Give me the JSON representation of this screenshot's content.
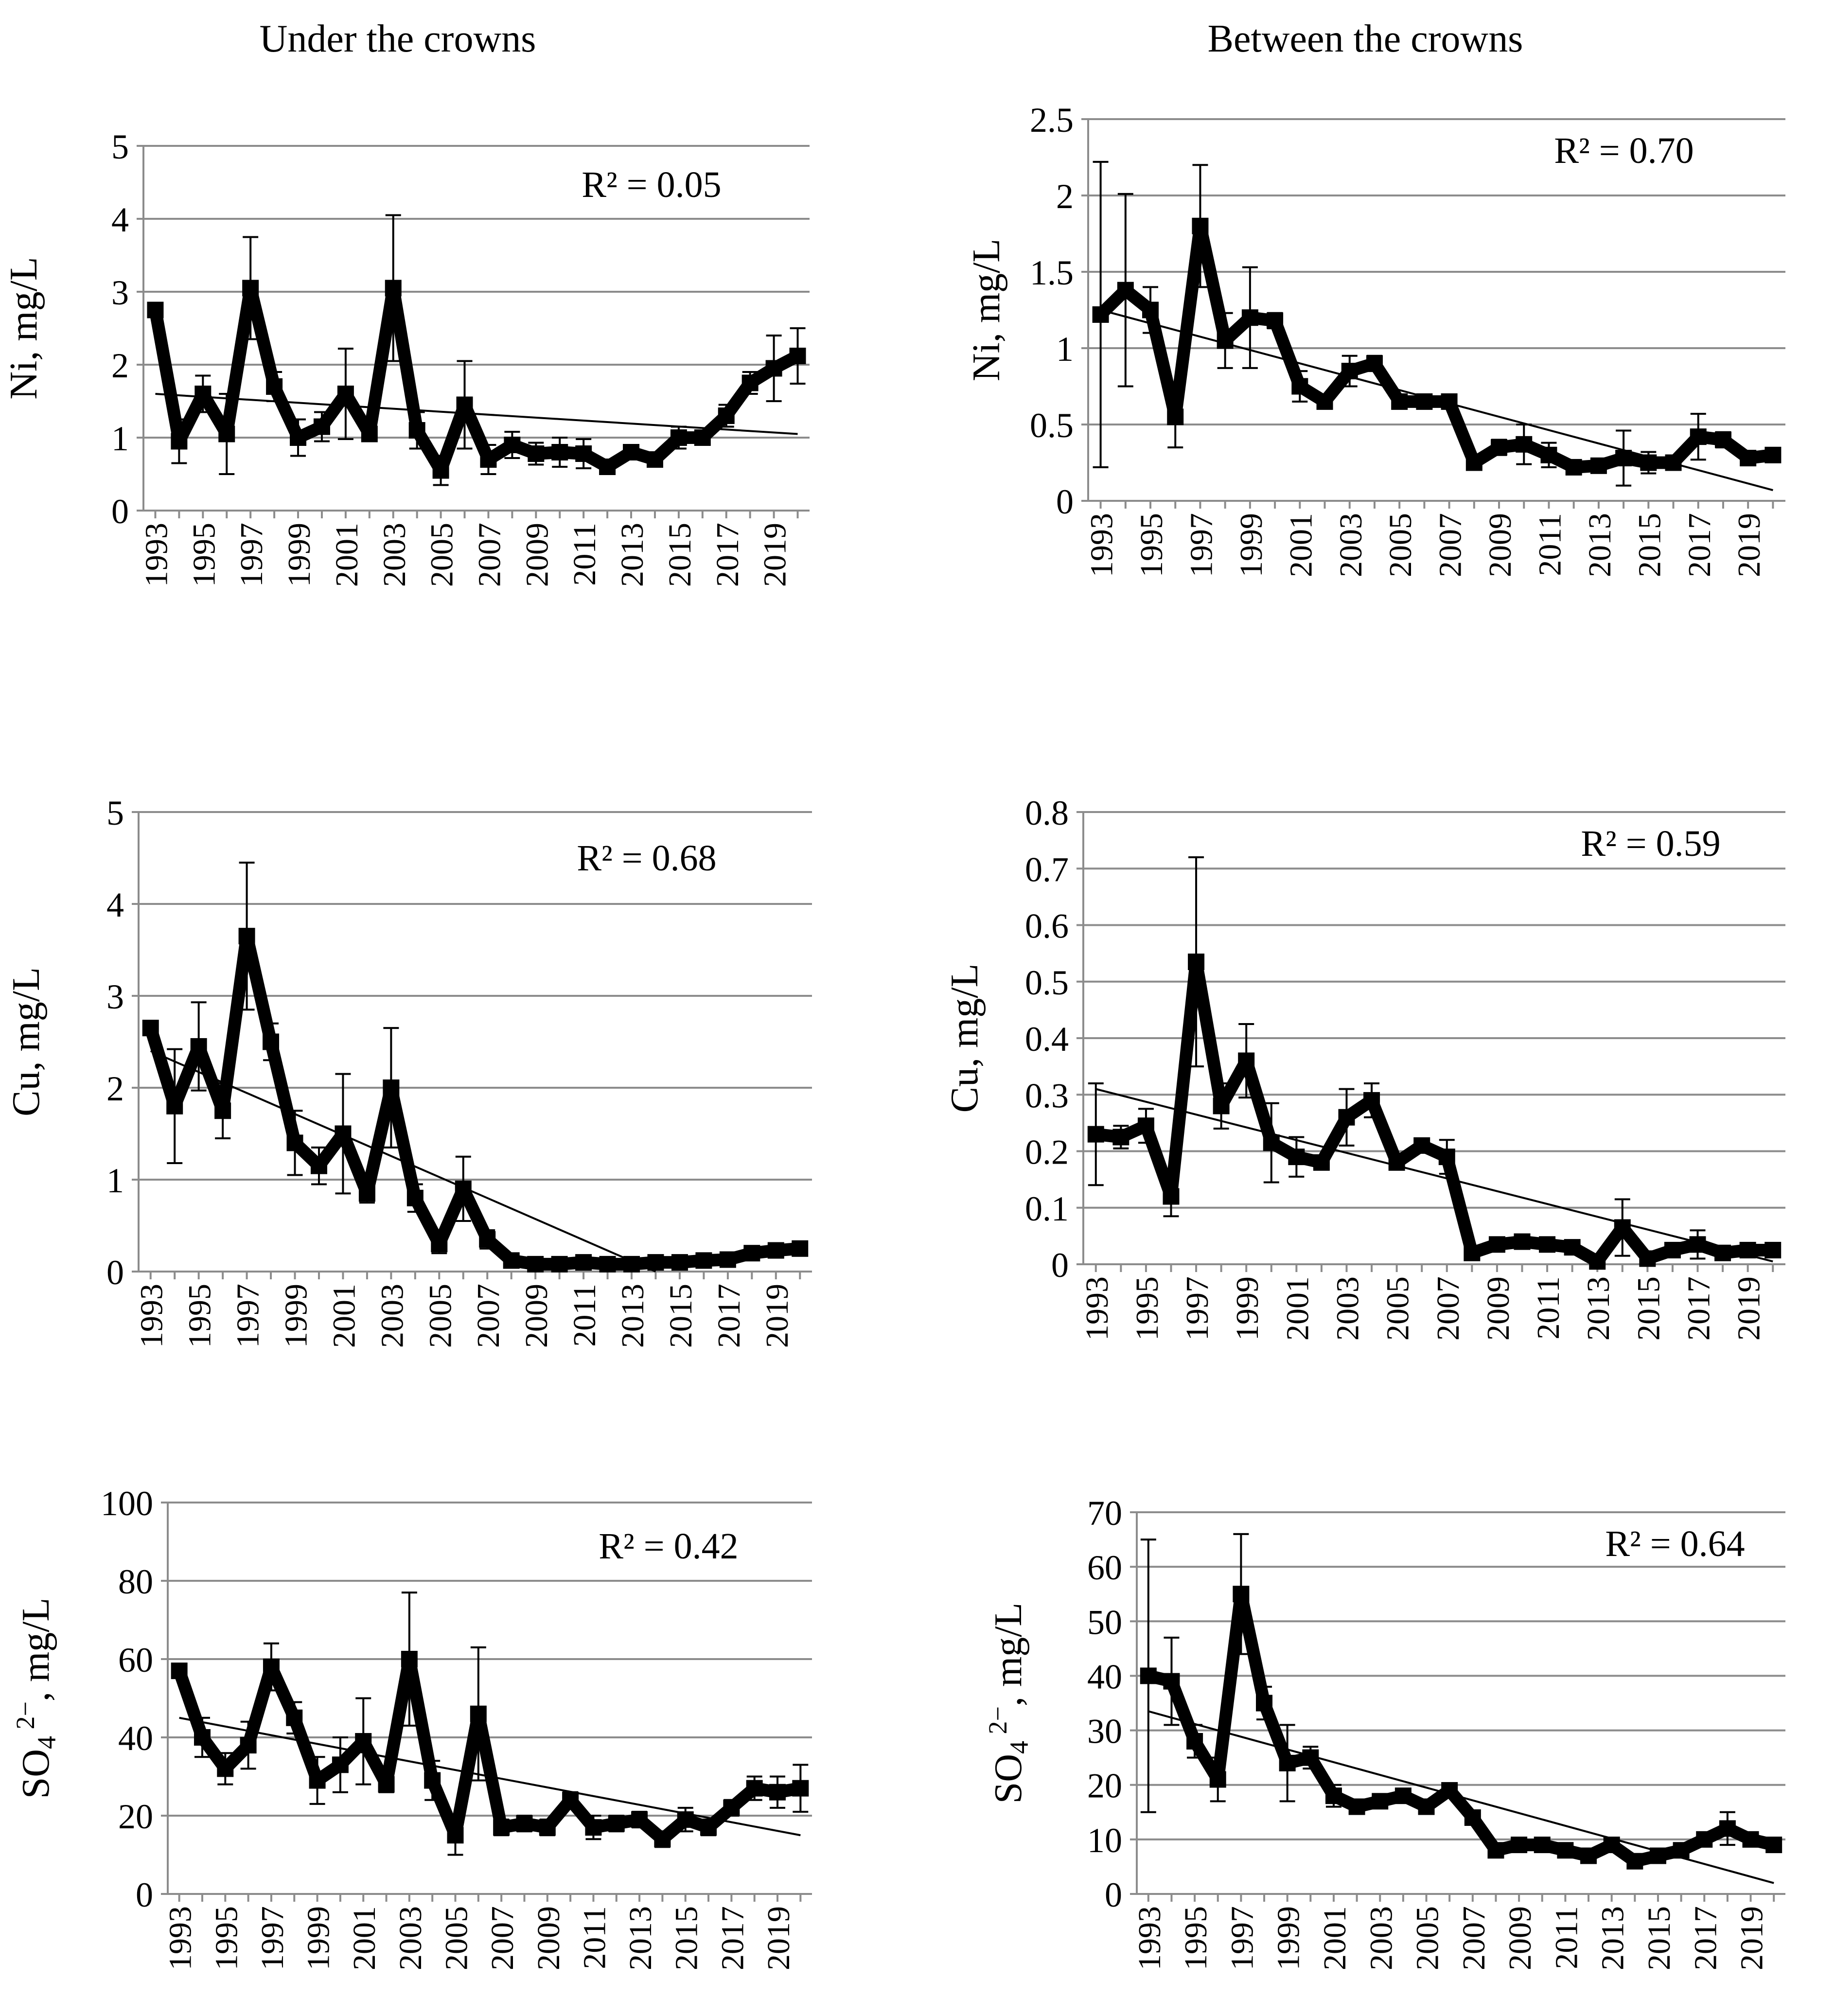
{
  "columns": [
    "Under the crowns",
    "Between the crowns"
  ],
  "chart_data": [
    {
      "id": "ni-under",
      "type": "line",
      "column": 0,
      "ylabel": "Ni, mg/L",
      "ylim": [
        0,
        5
      ],
      "yticks": [
        0,
        1,
        2,
        3,
        4,
        5
      ],
      "ytick_labels": [
        "0",
        "1",
        "2",
        "3",
        "4",
        "5"
      ],
      "x": [
        1993,
        1994,
        1995,
        1996,
        1997,
        1998,
        1999,
        2000,
        2001,
        2002,
        2003,
        2004,
        2005,
        2006,
        2007,
        2008,
        2009,
        2010,
        2011,
        2012,
        2013,
        2014,
        2015,
        2016,
        2017,
        2018,
        2019,
        2020
      ],
      "xtick_labels": [
        "1993",
        "1995",
        "1997",
        "1999",
        "2001",
        "2003",
        "2005",
        "2007",
        "2009",
        "2011",
        "2013",
        "2015",
        "2017",
        "2019"
      ],
      "values": [
        2.75,
        0.95,
        1.6,
        1.05,
        3.05,
        1.7,
        1.0,
        1.15,
        1.6,
        1.05,
        3.05,
        1.1,
        0.55,
        1.45,
        0.7,
        0.9,
        0.78,
        0.8,
        0.78,
        0.6,
        0.8,
        0.7,
        1.0,
        1.0,
        1.3,
        1.75,
        1.95,
        2.12
      ],
      "errors": [
        0,
        0.3,
        0.25,
        0.55,
        0.7,
        0.2,
        0.25,
        0.2,
        0.62,
        0.1,
        1.0,
        0.25,
        0.2,
        0.6,
        0.2,
        0.18,
        0.15,
        0.2,
        0.2,
        0.1,
        0.1,
        0.1,
        0.15,
        0.1,
        0.15,
        0.15,
        0.45,
        0.38
      ],
      "trend": [
        1.6,
        1.05
      ],
      "r2": "R² = 0.05"
    },
    {
      "id": "ni-between",
      "type": "line",
      "column": 1,
      "ylabel": "Ni, mg/L",
      "ylim": [
        0,
        2.5
      ],
      "yticks": [
        0,
        0.5,
        1,
        1.5,
        2,
        2.5
      ],
      "ytick_labels": [
        "0",
        "0.5",
        "1",
        "1.5",
        "2",
        "2.5"
      ],
      "x": [
        1993,
        1994,
        1995,
        1996,
        1997,
        1998,
        1999,
        2000,
        2001,
        2002,
        2003,
        2004,
        2005,
        2006,
        2007,
        2008,
        2009,
        2010,
        2011,
        2012,
        2013,
        2014,
        2015,
        2016,
        2017,
        2018,
        2019,
        2020
      ],
      "xtick_labels": [
        "1993",
        "1995",
        "1997",
        "1999",
        "2001",
        "2003",
        "2005",
        "2007",
        "2009",
        "2011",
        "2013",
        "2015",
        "2017",
        "2019"
      ],
      "values": [
        1.22,
        1.38,
        1.25,
        0.55,
        1.8,
        1.05,
        1.2,
        1.18,
        0.75,
        0.65,
        0.85,
        0.9,
        0.65,
        0.65,
        0.65,
        0.25,
        0.35,
        0.37,
        0.3,
        0.22,
        0.23,
        0.28,
        0.25,
        0.25,
        0.42,
        0.4,
        0.28,
        0.3
      ],
      "errors": [
        1.0,
        0.63,
        0.15,
        0.2,
        0.4,
        0.18,
        0.33,
        0.05,
        0.1,
        0.03,
        0.1,
        0.05,
        0.03,
        0.03,
        0.03,
        0.02,
        0.05,
        0.13,
        0.08,
        0.03,
        0.02,
        0.18,
        0.07,
        0.03,
        0.15,
        0.05,
        0.03,
        0.02
      ],
      "trend": [
        1.25,
        0.07
      ],
      "r2": "R² = 0.70"
    },
    {
      "id": "cu-under",
      "type": "line",
      "column": 0,
      "ylabel": "Cu, mg/L",
      "ylim": [
        0,
        5
      ],
      "yticks": [
        0,
        1,
        2,
        3,
        4,
        5
      ],
      "ytick_labels": [
        "0",
        "1",
        "2",
        "3",
        "4",
        "5"
      ],
      "x": [
        1993,
        1994,
        1995,
        1996,
        1997,
        1998,
        1999,
        2000,
        2001,
        2002,
        2003,
        2004,
        2005,
        2006,
        2007,
        2008,
        2009,
        2010,
        2011,
        2012,
        2013,
        2014,
        2015,
        2016,
        2017,
        2018,
        2019,
        2020
      ],
      "xtick_labels": [
        "1993",
        "1995",
        "1997",
        "1999",
        "2001",
        "2003",
        "2005",
        "2007",
        "2009",
        "2011",
        "2013",
        "2015",
        "2017",
        "2019"
      ],
      "values": [
        2.65,
        1.8,
        2.45,
        1.75,
        3.65,
        2.5,
        1.4,
        1.15,
        1.5,
        0.85,
        2.0,
        0.8,
        0.3,
        0.9,
        0.35,
        0.12,
        0.08,
        0.08,
        0.1,
        0.08,
        0.08,
        0.1,
        0.1,
        0.12,
        0.13,
        0.2,
        0.23,
        0.25
      ],
      "errors": [
        0,
        0.62,
        0.48,
        0.3,
        0.8,
        0.2,
        0.35,
        0.2,
        0.65,
        0.1,
        0.65,
        0.15,
        0.1,
        0.35,
        0.1,
        0.05,
        0.02,
        0.02,
        0.02,
        0.02,
        0.02,
        0.02,
        0.02,
        0.02,
        0.02,
        0.02,
        0.03,
        0.03
      ],
      "trend": [
        2.4,
        0.0
      ],
      "trend_zero_at": 2014,
      "r2": "R² = 0.68"
    },
    {
      "id": "cu-between",
      "type": "line",
      "column": 1,
      "ylabel": "Cu, mg/L",
      "ylim": [
        0,
        0.8
      ],
      "yticks": [
        0,
        0.1,
        0.2,
        0.3,
        0.4,
        0.5,
        0.6,
        0.7,
        0.8
      ],
      "ytick_labels": [
        "0",
        "0.1",
        "0.2",
        "0.3",
        "0.4",
        "0.5",
        "0.6",
        "0.7",
        "0.8"
      ],
      "x": [
        1993,
        1994,
        1995,
        1996,
        1997,
        1998,
        1999,
        2000,
        2001,
        2002,
        2003,
        2004,
        2005,
        2006,
        2007,
        2008,
        2009,
        2010,
        2011,
        2012,
        2013,
        2014,
        2015,
        2016,
        2017,
        2018,
        2019,
        2020
      ],
      "xtick_labels": [
        "1993",
        "1995",
        "1997",
        "1999",
        "2001",
        "2003",
        "2005",
        "2007",
        "2009",
        "2011",
        "2013",
        "2015",
        "2017",
        "2019"
      ],
      "values": [
        0.23,
        0.225,
        0.245,
        0.12,
        0.535,
        0.28,
        0.36,
        0.215,
        0.19,
        0.18,
        0.26,
        0.29,
        0.18,
        0.21,
        0.19,
        0.02,
        0.035,
        0.04,
        0.035,
        0.03,
        0.005,
        0.065,
        0.01,
        0.025,
        0.035,
        0.02,
        0.025,
        0.025
      ],
      "errors": [
        0.09,
        0.02,
        0.03,
        0.035,
        0.185,
        0.04,
        0.065,
        0.07,
        0.035,
        0.01,
        0.05,
        0.03,
        0.01,
        0.01,
        0.03,
        0.005,
        0.005,
        0.005,
        0.005,
        0.005,
        0.005,
        0.05,
        0.005,
        0.005,
        0.025,
        0.005,
        0.005,
        0.005
      ],
      "trend": [
        0.31,
        0.005
      ],
      "r2": "R² = 0.59"
    },
    {
      "id": "so4-under",
      "type": "line",
      "column": 0,
      "ylabel": "SO",
      "ylabel_sub": "4",
      "ylabel_sup": "2−",
      "ylabel_tail": ", mg/L",
      "ylim": [
        0,
        100
      ],
      "yticks": [
        0,
        20,
        40,
        60,
        80,
        100
      ],
      "ytick_labels": [
        "0",
        "20",
        "40",
        "60",
        "80",
        "100"
      ],
      "x": [
        1993,
        1994,
        1995,
        1996,
        1997,
        1998,
        1999,
        2000,
        2001,
        2002,
        2003,
        2004,
        2005,
        2006,
        2007,
        2008,
        2009,
        2010,
        2011,
        2012,
        2013,
        2014,
        2015,
        2016,
        2017,
        2018,
        2019,
        2020
      ],
      "xtick_labels": [
        "1993",
        "1995",
        "1997",
        "1999",
        "2001",
        "2003",
        "2005",
        "2007",
        "2009",
        "2011",
        "2013",
        "2015",
        "2017",
        "2019"
      ],
      "values": [
        57,
        40,
        32,
        38,
        58,
        45,
        29,
        33,
        39,
        28,
        60,
        29,
        15,
        46,
        17,
        18,
        17,
        24,
        17,
        18,
        19,
        14,
        19,
        17,
        22,
        27,
        26,
        27
      ],
      "errors": [
        0,
        5,
        4,
        6,
        6,
        4,
        6,
        7,
        11,
        2,
        17,
        5,
        5,
        17,
        2,
        2,
        2,
        2,
        3,
        2,
        2,
        2,
        3,
        2,
        2,
        3,
        4,
        6
      ],
      "trend": [
        45,
        15
      ],
      "r2": "R² = 0.42"
    },
    {
      "id": "so4-between",
      "type": "line",
      "column": 1,
      "ylabel": "SO",
      "ylabel_sub": "4",
      "ylabel_sup": "2−",
      "ylabel_tail": ", mg/L",
      "ylim": [
        0,
        70
      ],
      "yticks": [
        0,
        10,
        20,
        30,
        40,
        50,
        60,
        70
      ],
      "ytick_labels": [
        "0",
        "10",
        "20",
        "30",
        "40",
        "50",
        "60",
        "70"
      ],
      "x": [
        1993,
        1994,
        1995,
        1996,
        1997,
        1998,
        1999,
        2000,
        2001,
        2002,
        2003,
        2004,
        2005,
        2006,
        2007,
        2008,
        2009,
        2010,
        2011,
        2012,
        2013,
        2014,
        2015,
        2016,
        2017,
        2018,
        2019,
        2020
      ],
      "xtick_labels": [
        "1993",
        "1995",
        "1997",
        "1999",
        "2001",
        "2003",
        "2005",
        "2007",
        "2009",
        "2011",
        "2013",
        "2015",
        "2017",
        "2019"
      ],
      "values": [
        40,
        39,
        28,
        21,
        55,
        35,
        24,
        25,
        18,
        16,
        17,
        18,
        16,
        19,
        14,
        8,
        9,
        9,
        8,
        7,
        9,
        6,
        7,
        8,
        10,
        12,
        10,
        9
      ],
      "errors": [
        25,
        8,
        3,
        4,
        11,
        3,
        7,
        2,
        2,
        1,
        1,
        1,
        1,
        1,
        1,
        1,
        1,
        1,
        1,
        1,
        1,
        1,
        1,
        1,
        1,
        3,
        1,
        1
      ],
      "trend": [
        33.5,
        2
      ],
      "r2": "R² = 0.64"
    }
  ]
}
